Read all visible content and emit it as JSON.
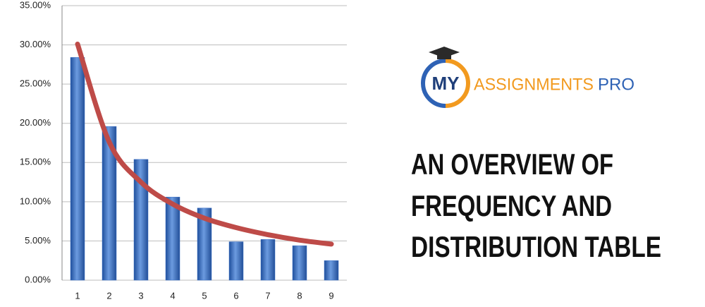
{
  "chart_data": {
    "type": "bar",
    "categories": [
      "1",
      "2",
      "3",
      "4",
      "5",
      "6",
      "7",
      "8",
      "9"
    ],
    "series": [
      {
        "type": "bar",
        "color": "#3d72c8",
        "values": [
          28.4,
          19.6,
          15.4,
          10.6,
          9.2,
          4.9,
          5.2,
          4.4,
          2.5
        ]
      },
      {
        "type": "line",
        "color": "#be4b48",
        "values": [
          30.1,
          17.6,
          12.5,
          9.7,
          7.9,
          6.7,
          5.8,
          5.1,
          4.6
        ]
      }
    ],
    "ylim": [
      0,
      35
    ],
    "yticks": [
      {
        "value": 0,
        "label": "0.00%"
      },
      {
        "value": 5,
        "label": "5.00%"
      },
      {
        "value": 10,
        "label": "10.00%"
      },
      {
        "value": 15,
        "label": "15.00%"
      },
      {
        "value": 20,
        "label": "20.00%"
      },
      {
        "value": 25,
        "label": "25.00%"
      },
      {
        "value": 30,
        "label": "30.00%"
      },
      {
        "value": 35,
        "label": "35.00%"
      }
    ],
    "grid": true
  },
  "logo": {
    "mark": "MY",
    "name": "ASSIGNMENTS",
    "suffix": "PRO"
  },
  "headline": [
    "AN OVERVIEW OF",
    "FREQUENCY AND",
    "DISTRIBUTION TABLE"
  ]
}
